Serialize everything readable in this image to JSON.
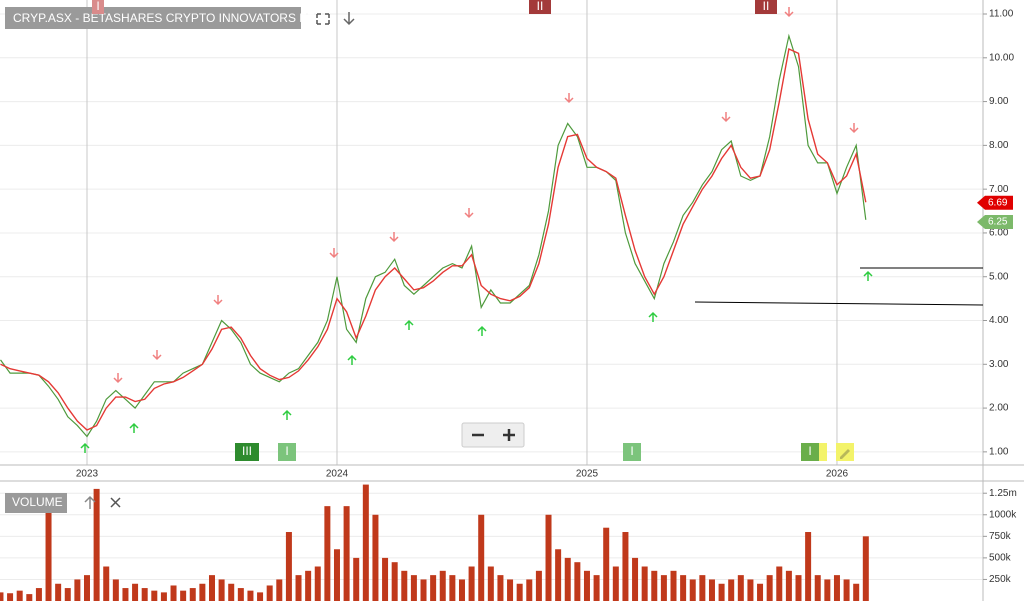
{
  "chart_data": [
    {
      "type": "line",
      "title": "CRYP.ASX - BETASHARES CRYPTO INNOVATORS ETF",
      "categories": [
        null,
        null,
        null,
        null,
        null,
        null,
        null,
        null,
        null,
        "2023",
        null,
        null,
        null,
        null,
        null,
        null,
        null,
        null,
        null,
        null,
        null,
        null,
        null,
        null,
        null,
        null,
        null,
        null,
        null,
        null,
        null,
        null,
        null,
        null,
        null,
        "2024",
        null,
        null,
        null,
        null,
        null,
        null,
        null,
        null,
        null,
        null,
        null,
        null,
        null,
        null,
        null,
        null,
        null,
        null,
        null,
        null,
        null,
        null,
        null,
        null,
        null,
        "2025",
        null,
        null,
        null,
        null,
        null,
        null,
        null,
        null,
        null,
        null,
        null,
        null,
        null,
        null,
        null,
        null,
        null,
        null,
        null,
        null,
        null,
        null,
        null,
        null,
        null,
        "2026",
        null,
        null,
        null
      ],
      "series": [
        {
          "color": "#4e9a3c",
          "values": [
            3.1,
            2.8,
            2.8,
            2.8,
            2.75,
            2.5,
            2.2,
            1.8,
            1.6,
            1.35,
            1.7,
            2.2,
            2.4,
            2.2,
            2.0,
            2.3,
            2.6,
            2.6,
            2.6,
            2.8,
            2.9,
            3.0,
            3.5,
            4.0,
            3.8,
            3.5,
            3.0,
            2.8,
            2.7,
            2.6,
            2.8,
            2.9,
            3.2,
            3.5,
            4.0,
            5.0,
            3.8,
            3.5,
            4.5,
            5.0,
            5.1,
            5.4,
            4.8,
            4.6,
            4.8,
            5.0,
            5.2,
            5.3,
            5.2,
            5.7,
            4.3,
            4.7,
            4.4,
            4.4,
            4.6,
            4.8,
            5.5,
            6.5,
            8.0,
            8.5,
            8.2,
            7.5,
            7.5,
            7.4,
            7.2,
            6.0,
            5.3,
            4.9,
            4.5,
            5.3,
            5.8,
            6.4,
            6.7,
            7.1,
            7.4,
            7.9,
            8.1,
            7.3,
            7.2,
            7.3,
            8.2,
            9.5,
            10.5,
            9.8,
            8.0,
            7.6,
            7.6,
            6.9,
            7.5,
            8.0,
            6.3
          ]
        },
        {
          "color": "#e53935",
          "values": [
            3.0,
            2.9,
            2.85,
            2.8,
            2.75,
            2.6,
            2.35,
            2.0,
            1.7,
            1.5,
            1.6,
            2.0,
            2.25,
            2.25,
            2.15,
            2.2,
            2.45,
            2.55,
            2.6,
            2.7,
            2.85,
            3.0,
            3.35,
            3.8,
            3.85,
            3.6,
            3.2,
            2.9,
            2.75,
            2.65,
            2.7,
            2.85,
            3.1,
            3.4,
            3.8,
            4.5,
            4.2,
            3.6,
            4.1,
            4.7,
            5.0,
            5.2,
            4.95,
            4.7,
            4.75,
            4.9,
            5.1,
            5.25,
            5.25,
            5.5,
            4.8,
            4.6,
            4.5,
            4.45,
            4.55,
            4.75,
            5.3,
            6.2,
            7.5,
            8.2,
            8.25,
            7.7,
            7.5,
            7.4,
            7.25,
            6.4,
            5.6,
            5.0,
            4.6,
            5.0,
            5.6,
            6.2,
            6.6,
            7.0,
            7.3,
            7.7,
            8.0,
            7.5,
            7.25,
            7.3,
            7.9,
            9.0,
            10.2,
            10.1,
            8.6,
            7.8,
            7.6,
            7.1,
            7.3,
            7.8,
            6.7
          ]
        }
      ],
      "ylim": [
        0.7,
        11.32
      ],
      "yticks": [
        {
          "value": 1,
          "label": "1.00"
        },
        {
          "value": 2,
          "label": "2.00"
        },
        {
          "value": 3,
          "label": "3.00"
        },
        {
          "value": 4,
          "label": "4.00"
        },
        {
          "value": 5,
          "label": "5.00"
        },
        {
          "value": 6,
          "label": "6.00"
        },
        {
          "value": 7,
          "label": "7.00"
        },
        {
          "value": 8,
          "label": "8.00"
        },
        {
          "value": 9,
          "label": "9.00"
        },
        {
          "value": 10,
          "label": "10.00"
        },
        {
          "value": 11,
          "label": "11.00"
        }
      ],
      "grid": true,
      "price_tags": [
        {
          "value": 6.69,
          "label": "6.69",
          "color": "#e00000"
        },
        {
          "value": 6.25,
          "label": "6.25",
          "color": "#7cb96a"
        }
      ],
      "badges": [
        "I",
        "II",
        "II",
        "III",
        "I",
        "I",
        "I"
      ]
    },
    {
      "type": "bar",
      "title": "VOLUME",
      "color": "#c0391b",
      "values": [
        100000,
        90000,
        120000,
        80000,
        150000,
        1100000,
        200000,
        150000,
        250000,
        300000,
        1300000,
        400000,
        250000,
        150000,
        200000,
        150000,
        120000,
        100000,
        180000,
        120000,
        150000,
        200000,
        300000,
        250000,
        200000,
        150000,
        120000,
        100000,
        180000,
        250000,
        800000,
        300000,
        350000,
        400000,
        1100000,
        600000,
        1100000,
        500000,
        1350000,
        1000000,
        500000,
        450000,
        350000,
        300000,
        250000,
        300000,
        350000,
        300000,
        250000,
        400000,
        1000000,
        400000,
        300000,
        250000,
        200000,
        250000,
        350000,
        1000000,
        600000,
        500000,
        450000,
        350000,
        300000,
        850000,
        400000,
        800000,
        500000,
        400000,
        350000,
        300000,
        350000,
        300000,
        250000,
        300000,
        250000,
        200000,
        250000,
        300000,
        250000,
        200000,
        300000,
        400000,
        350000,
        300000,
        800000,
        300000,
        250000,
        300000,
        250000,
        200000,
        750000
      ],
      "ylim": [
        0,
        1380000
      ],
      "yticks": [
        {
          "value": 250000,
          "label": "250k"
        },
        {
          "value": 500000,
          "label": "500k"
        },
        {
          "value": 750000,
          "label": "750k"
        },
        {
          "value": 1000000,
          "label": "1000k"
        },
        {
          "value": 1250000,
          "label": "1.25m"
        }
      ],
      "grid": true
    }
  ]
}
